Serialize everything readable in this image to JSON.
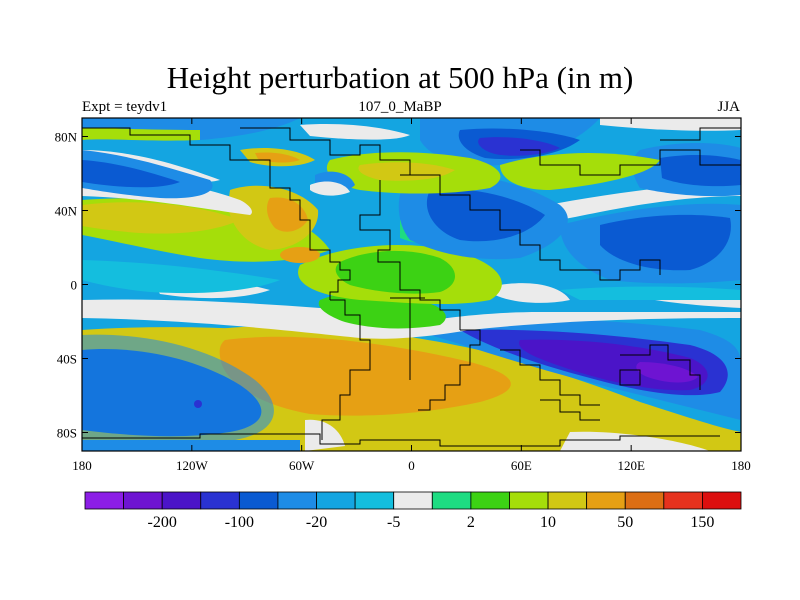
{
  "title": "Height perturbation at 500 hPa (in m)",
  "subtitle_left": "Expt = teydv1",
  "subtitle_center": "107_0_MaBP",
  "subtitle_right": "JJA",
  "map": {
    "projection": "cylindrical-equidistant",
    "lon_range": [
      -180,
      180
    ],
    "lat_range": [
      -90,
      90
    ],
    "x_ticks": [
      {
        "lon": -180,
        "label": "180"
      },
      {
        "lon": -120,
        "label": "120W"
      },
      {
        "lon": -60,
        "label": "60W"
      },
      {
        "lon": 0,
        "label": "0"
      },
      {
        "lon": 60,
        "label": "60E"
      },
      {
        "lon": 120,
        "label": "120E"
      },
      {
        "lon": 180,
        "label": "180"
      }
    ],
    "y_ticks": [
      {
        "lat": 80,
        "label": "80N"
      },
      {
        "lat": 40,
        "label": "40N"
      },
      {
        "lat": 0,
        "label": "0"
      },
      {
        "lat": -40,
        "label": "40S"
      },
      {
        "lat": -80,
        "label": "80S"
      }
    ]
  },
  "colorbar": {
    "colors": [
      "#8c1ee6",
      "#6e14d2",
      "#4b14c8",
      "#2a32d2",
      "#0a5ad2",
      "#1e8ce6",
      "#14a5e1",
      "#14bede",
      "#ebebeb",
      "#1edc82",
      "#3cd214",
      "#a5de0a",
      "#d2c814",
      "#e6a014",
      "#dc6e14",
      "#e6321e",
      "#dc0f0f"
    ],
    "labels": [
      {
        "boundary": 2,
        "text": "-200"
      },
      {
        "boundary": 4,
        "text": "-100"
      },
      {
        "boundary": 6,
        "text": "-20"
      },
      {
        "boundary": 8,
        "text": "-5"
      },
      {
        "boundary": 10,
        "text": "2"
      },
      {
        "boundary": 12,
        "text": "10"
      },
      {
        "boundary": 14,
        "text": "50"
      },
      {
        "boundary": 16,
        "text": "150"
      }
    ]
  }
}
